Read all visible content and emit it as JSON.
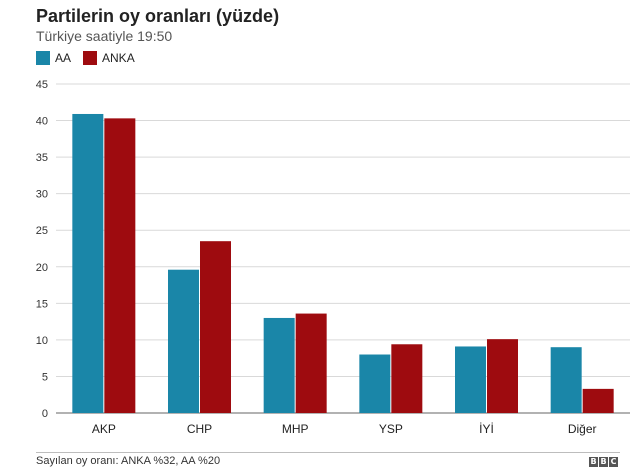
{
  "header": {
    "title": "Partilerin oy oranları (yüzde)",
    "subtitle": "Türkiye saatiyle 19:50"
  },
  "colors": {
    "AA": "#1a86a8",
    "ANKA": "#9e0b0f"
  },
  "chart_data": {
    "type": "bar",
    "title": "Partilerin oy oranları (yüzde)",
    "subtitle": "Türkiye saatiyle 19:50",
    "categories": [
      "AKP",
      "CHP",
      "MHP",
      "YSP",
      "İYİ",
      "Diğer"
    ],
    "series": [
      {
        "name": "AA",
        "values": [
          40.9,
          19.6,
          13.0,
          8.0,
          9.1,
          9.0
        ]
      },
      {
        "name": "ANKA",
        "values": [
          40.3,
          23.5,
          13.6,
          9.4,
          10.1,
          3.3
        ]
      }
    ],
    "xlabel": "",
    "ylabel": "",
    "ylim": [
      0,
      45
    ],
    "yticks": [
      "0",
      "5",
      "10",
      "15",
      "20",
      "25",
      "30",
      "35",
      "40",
      "45"
    ],
    "grid": true,
    "legend": "top-left"
  },
  "footer": {
    "note": "Sayılan oy oranı: ANKA %32, AA %20",
    "brand": [
      "B",
      "B",
      "C"
    ]
  }
}
